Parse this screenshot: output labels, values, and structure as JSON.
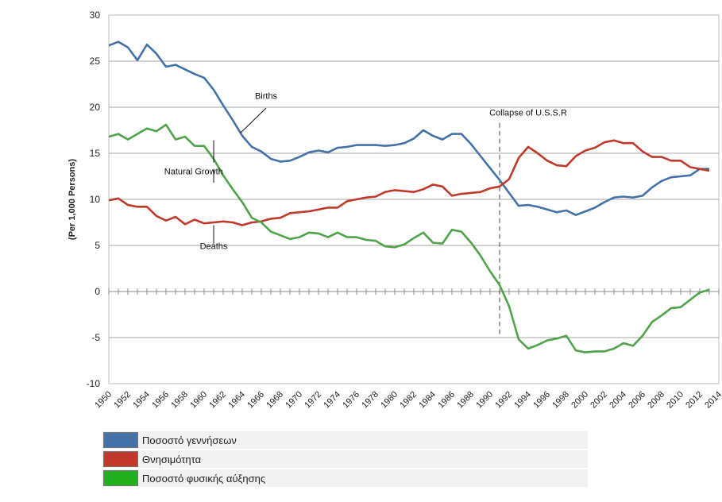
{
  "chart_data": {
    "type": "line",
    "ylabel": "(Per 1,000 Persons)",
    "xlabel": "",
    "ylim": [
      -10,
      30
    ],
    "xlim": [
      1950,
      2014
    ],
    "yticks": [
      -10,
      -5,
      0,
      5,
      10,
      15,
      20,
      25,
      30
    ],
    "xticks": [
      1950,
      1952,
      1954,
      1956,
      1958,
      1960,
      1962,
      1964,
      1966,
      1968,
      1970,
      1972,
      1974,
      1976,
      1978,
      1980,
      1982,
      1984,
      1986,
      1988,
      1990,
      1992,
      1994,
      1996,
      1998,
      2000,
      2002,
      2004,
      2006,
      2008,
      2010,
      2012,
      2014
    ],
    "grid": "horizontal",
    "x": [
      1950,
      1951,
      1952,
      1953,
      1954,
      1955,
      1956,
      1957,
      1958,
      1959,
      1960,
      1961,
      1962,
      1963,
      1964,
      1965,
      1966,
      1967,
      1968,
      1969,
      1970,
      1971,
      1972,
      1973,
      1974,
      1975,
      1976,
      1977,
      1978,
      1979,
      1980,
      1981,
      1982,
      1983,
      1984,
      1985,
      1986,
      1987,
      1988,
      1989,
      1990,
      1991,
      1992,
      1993,
      1994,
      1995,
      1996,
      1997,
      1998,
      1999,
      2000,
      2001,
      2002,
      2003,
      2004,
      2005,
      2006,
      2007,
      2008,
      2009,
      2010,
      2011,
      2012,
      2013
    ],
    "series": [
      {
        "name": "Ποσοστό γεννήσεων",
        "color": "#4472a8",
        "values": [
          26.7,
          27.1,
          26.5,
          25.1,
          26.8,
          25.8,
          24.4,
          24.6,
          24.1,
          23.6,
          23.2,
          21.9,
          20.2,
          18.6,
          16.9,
          15.7,
          15.2,
          14.4,
          14.1,
          14.2,
          14.6,
          15.1,
          15.3,
          15.1,
          15.6,
          15.7,
          15.9,
          15.9,
          15.9,
          15.8,
          15.9,
          16.1,
          16.6,
          17.5,
          16.9,
          16.5,
          17.1,
          17.1,
          16.0,
          14.7,
          13.4,
          12.1,
          10.7,
          9.3,
          9.4,
          9.2,
          8.9,
          8.6,
          8.8,
          8.3,
          8.7,
          9.1,
          9.7,
          10.2,
          10.3,
          10.2,
          10.4,
          11.3,
          12.0,
          12.4,
          12.5,
          12.6,
          13.3,
          13.3
        ]
      },
      {
        "name": "Θνησιμότητα",
        "color": "#c0392b",
        "values": [
          9.9,
          10.1,
          9.4,
          9.2,
          9.2,
          8.2,
          7.7,
          8.1,
          7.3,
          7.8,
          7.4,
          7.5,
          7.6,
          7.5,
          7.2,
          7.5,
          7.6,
          7.9,
          8.0,
          8.5,
          8.6,
          8.7,
          8.9,
          9.1,
          9.1,
          9.8,
          10.0,
          10.2,
          10.3,
          10.8,
          11.0,
          10.9,
          10.8,
          11.1,
          11.6,
          11.4,
          10.4,
          10.6,
          10.7,
          10.8,
          11.2,
          11.4,
          12.2,
          14.5,
          15.7,
          15.0,
          14.2,
          13.7,
          13.6,
          14.7,
          15.3,
          15.6,
          16.2,
          16.4,
          16.1,
          16.1,
          15.2,
          14.6,
          14.6,
          14.2,
          14.2,
          13.5,
          13.3,
          13.1
        ]
      },
      {
        "name": "Ποσοστό φυσικής αύξησης",
        "color": "#4fa34a",
        "values": [
          16.8,
          17.1,
          16.5,
          17.1,
          17.7,
          17.4,
          18.1,
          16.5,
          16.8,
          15.8,
          15.8,
          14.4,
          12.6,
          11.1,
          9.7,
          8.0,
          7.5,
          6.5,
          6.1,
          5.7,
          5.9,
          6.4,
          6.3,
          5.9,
          6.4,
          5.9,
          5.9,
          5.6,
          5.5,
          4.9,
          4.8,
          5.1,
          5.8,
          6.4,
          5.3,
          5.2,
          6.7,
          6.5,
          5.3,
          3.9,
          2.2,
          0.7,
          -1.6,
          -5.2,
          -6.2,
          -5.8,
          -5.3,
          -5.1,
          -4.8,
          -6.4,
          -6.6,
          -6.5,
          -6.5,
          -6.2,
          -5.6,
          -5.9,
          -4.8,
          -3.3,
          -2.6,
          -1.8,
          -1.7,
          -0.9,
          -0.1,
          0.2
        ]
      }
    ],
    "annotations": [
      {
        "text": "Births",
        "x": 1966.5,
        "y": 20.9
      },
      {
        "text": "Natural Growth",
        "x": 1958.9,
        "y": 12.7
      },
      {
        "text": "Deaths",
        "x": 1961,
        "y": 4.6
      },
      {
        "text": "Collapse of U.S.S.R",
        "x": 1994,
        "y": 19.1
      }
    ],
    "event_line": {
      "x": 1991,
      "label": "Collapse of U.S.S.R"
    },
    "legend": {
      "position": "bottom-left"
    }
  }
}
